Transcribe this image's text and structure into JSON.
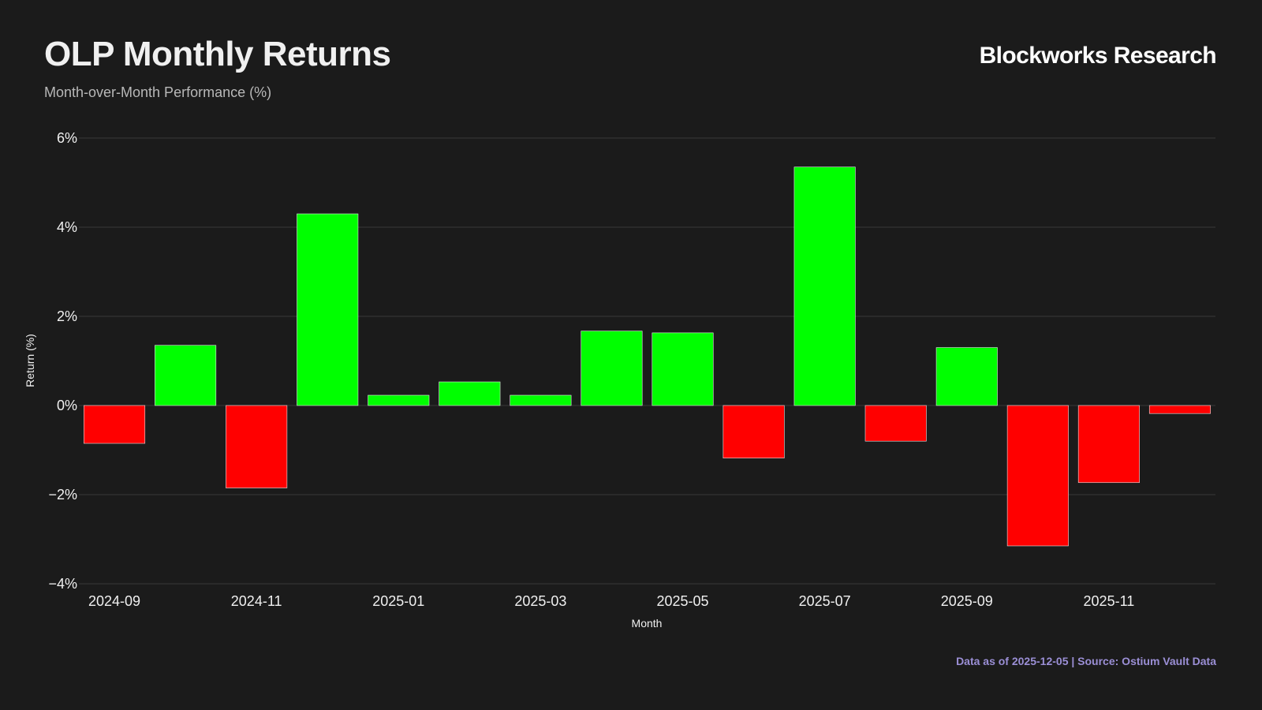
{
  "header": {
    "title": "OLP Monthly Returns",
    "subtitle": "Month-over-Month Performance (%)",
    "brand": "Blockworks Research"
  },
  "footer": {
    "source": "Data as of 2025-12-05 | Source: Ostium Vault Data"
  },
  "colors": {
    "background": "#1b1b1b",
    "positive": "#00ff00",
    "negative": "#ff0000",
    "gridline": "#3a3a3a",
    "text": "#f0f0f0",
    "source_text": "#9b8fd6"
  },
  "chart_data": {
    "type": "bar",
    "categories": [
      "2024-09",
      "2024-10",
      "2024-11",
      "2024-12",
      "2025-01",
      "2025-02",
      "2025-03",
      "2025-04",
      "2025-05",
      "2025-06",
      "2025-07",
      "2025-08",
      "2025-09",
      "2025-10",
      "2025-11",
      "2025-12"
    ],
    "values": [
      -0.85,
      1.35,
      -1.85,
      4.3,
      0.23,
      0.53,
      0.23,
      1.67,
      1.63,
      -1.18,
      5.35,
      -0.8,
      1.3,
      -3.15,
      -1.73,
      -0.18
    ],
    "xlabel": "Month",
    "ylabel": "Return (%)",
    "ylim": [
      -4,
      6
    ],
    "yticks": [
      6,
      4,
      2,
      0,
      -2,
      -4
    ],
    "ytick_labels": [
      "6%",
      "4%",
      "2%",
      "0%",
      "−2%",
      "−4%"
    ],
    "xtick_labels": [
      "2024-09",
      "2024-11",
      "2025-01",
      "2025-03",
      "2025-05",
      "2025-07",
      "2025-09",
      "2025-11"
    ],
    "grid": true,
    "legend": "none"
  }
}
